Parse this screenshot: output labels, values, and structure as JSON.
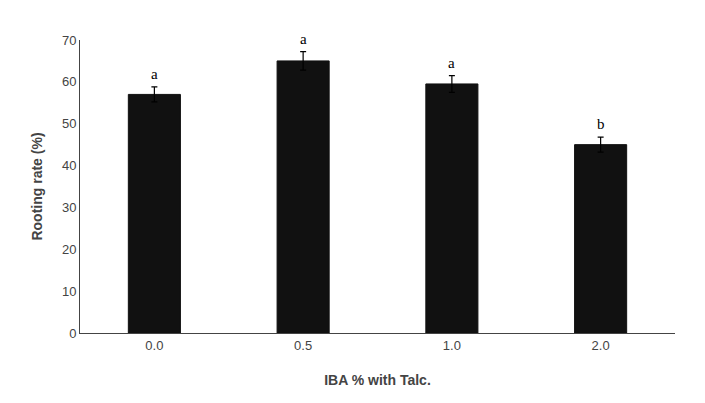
{
  "chart_data": {
    "type": "bar",
    "categories": [
      "0.0",
      "0.5",
      "1.0",
      "2.0"
    ],
    "values": [
      57.0,
      65.0,
      59.5,
      45.0
    ],
    "errors": [
      1.8,
      2.2,
      2.0,
      1.8
    ],
    "significance_labels": [
      "a",
      "a",
      "a",
      "b"
    ],
    "color": "#111111",
    "xlabel": "IBA % with Talc.",
    "ylabel": "Rooting rate (%)",
    "ylim": [
      0,
      70
    ],
    "yticks": [
      0,
      10,
      20,
      30,
      40,
      50,
      60,
      70
    ],
    "grid": false
  }
}
